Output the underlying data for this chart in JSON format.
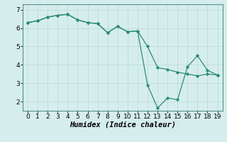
{
  "line1_x": [
    0,
    1,
    2,
    3,
    4,
    5,
    6,
    7,
    8,
    9,
    10,
    11,
    12,
    13,
    14,
    15,
    16,
    17,
    18,
    19
  ],
  "line1_y": [
    6.3,
    6.4,
    6.6,
    6.7,
    6.75,
    6.45,
    6.3,
    6.25,
    5.75,
    6.1,
    5.8,
    5.85,
    5.0,
    3.85,
    3.75,
    3.6,
    3.5,
    3.4,
    3.5,
    3.45
  ],
  "line2_x": [
    0,
    1,
    2,
    3,
    4,
    5,
    6,
    7,
    8,
    9,
    10,
    11,
    12,
    13,
    14,
    15,
    16,
    17,
    18,
    19
  ],
  "line2_y": [
    6.3,
    6.4,
    6.6,
    6.7,
    6.75,
    6.45,
    6.3,
    6.25,
    5.75,
    6.1,
    5.8,
    5.85,
    2.9,
    1.65,
    2.2,
    2.1,
    3.9,
    4.5,
    3.7,
    3.45
  ],
  "line_color": "#2e8b76",
  "marker": "D",
  "marker_size": 2.2,
  "xlabel": "Humidex (Indice chaleur)",
  "xlim": [
    -0.5,
    19.5
  ],
  "ylim": [
    1.5,
    7.3
  ],
  "yticks": [
    2,
    3,
    4,
    5,
    6,
    7
  ],
  "xticks": [
    0,
    1,
    2,
    3,
    4,
    5,
    6,
    7,
    8,
    9,
    10,
    11,
    12,
    13,
    14,
    15,
    16,
    17,
    18,
    19
  ],
  "bg_color": "#d5eeed",
  "grid_color": "#b8d8d8",
  "font_size": 6.5,
  "xlabel_fontsize": 7.5,
  "lw": 0.9
}
